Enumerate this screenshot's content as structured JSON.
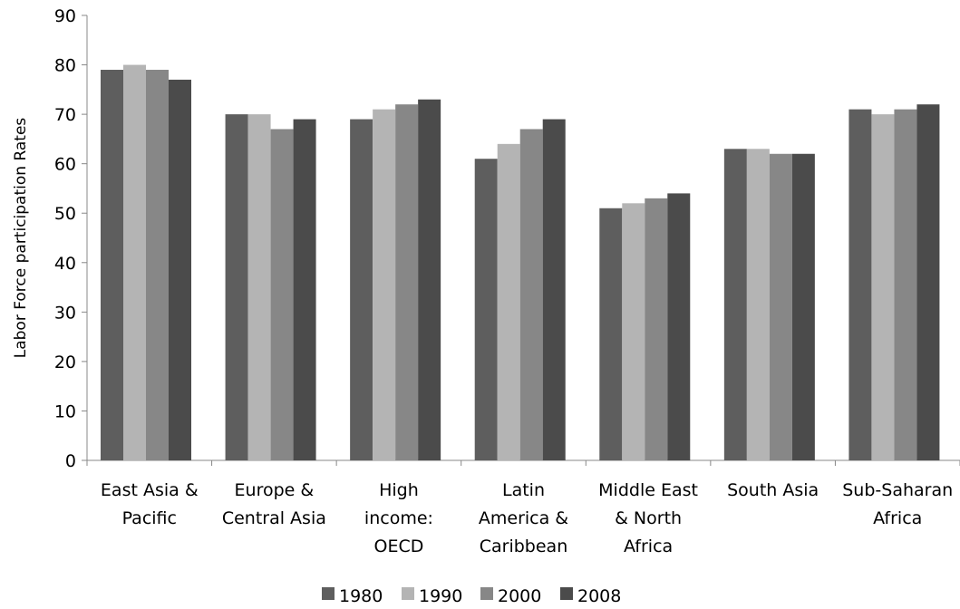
{
  "chart_data": {
    "type": "bar",
    "title": "",
    "xlabel": "",
    "ylabel": "Labor Force participation Rates",
    "ylim": [
      0,
      90
    ],
    "yticks": [
      0,
      10,
      20,
      30,
      40,
      50,
      60,
      70,
      80,
      90
    ],
    "grid": false,
    "legend_position": "bottom",
    "categories": [
      [
        "East Asia &",
        "Pacific"
      ],
      [
        "Europe &",
        "Central Asia"
      ],
      [
        "High",
        "income:",
        "OECD"
      ],
      [
        "Latin",
        "America &",
        "Caribbean"
      ],
      [
        "Middle East",
        "& North",
        "Africa"
      ],
      [
        "South Asia"
      ],
      [
        "Sub-Saharan",
        "Africa"
      ]
    ],
    "series": [
      {
        "name": "1980",
        "color": "#5e5e5e",
        "values": [
          79,
          70,
          69,
          61,
          51,
          63,
          71
        ]
      },
      {
        "name": "1990",
        "color": "#b4b4b4",
        "values": [
          80,
          70,
          71,
          64,
          52,
          63,
          70
        ]
      },
      {
        "name": "2000",
        "color": "#878787",
        "values": [
          79,
          67,
          72,
          67,
          53,
          62,
          71
        ]
      },
      {
        "name": "2008",
        "color": "#4b4b4b",
        "values": [
          77,
          69,
          73,
          69,
          54,
          62,
          72
        ]
      }
    ]
  }
}
